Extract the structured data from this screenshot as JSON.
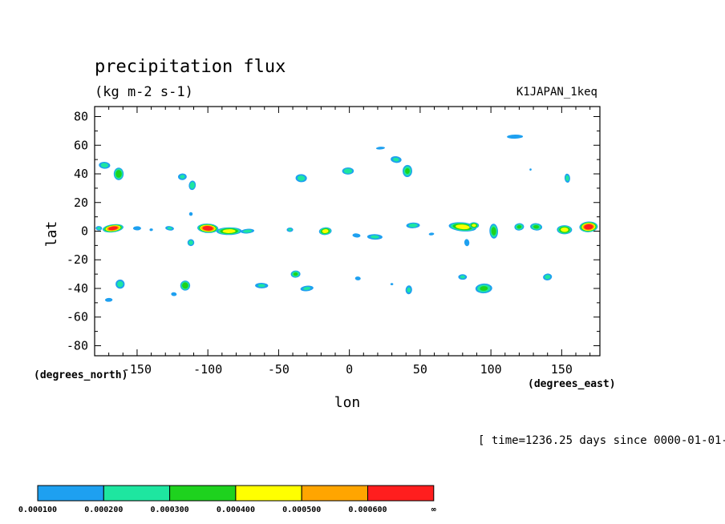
{
  "chart_data": {
    "type": "heatmap",
    "title": "precipitation flux",
    "units": "(kg m-2 s-1)",
    "dataset": "K1JAPAN_1keq",
    "xlabel": "lon",
    "ylabel": "lat",
    "x_units": "(degrees_east)",
    "y_units": "(degrees_north)",
    "time_label": "[ time=1236.25 days since 0000-01-01-",
    "xlim": [
      -180,
      177
    ],
    "ylim": [
      -87,
      87
    ],
    "x_ticks": [
      -150,
      -100,
      -50,
      0,
      50,
      100,
      150
    ],
    "y_ticks": [
      80,
      60,
      40,
      20,
      0,
      -20,
      -40,
      -60,
      -80
    ],
    "x_tick_labels": [
      "-150",
      "-100",
      "-50",
      "0",
      "50",
      "100",
      "150"
    ],
    "y_tick_labels": [
      "80",
      "60",
      "40",
      "20",
      "0",
      "-20",
      "-40",
      "-60",
      "-80"
    ],
    "levels": [
      0.0001,
      0.0002,
      0.0003,
      0.0004,
      0.0005,
      0.0006
    ],
    "colorbar": {
      "labels": [
        "0.000100",
        "0.000200",
        "0.000300",
        "0.000400",
        "0.000500",
        "0.000600",
        "∞"
      ],
      "colors": [
        "#1ea0f0",
        "#1ee6a0",
        "#1ed21e",
        "#ffff00",
        "#ffa500",
        "#ff1e1e"
      ]
    },
    "blobs": [
      {
        "lon": -167,
        "lat": 2,
        "rx": 8,
        "ry": 3,
        "peak": 0.00065
      },
      {
        "lon": -177,
        "lat": 2,
        "rx": 3,
        "ry": 2,
        "peak": 0.00022
      },
      {
        "lon": -150,
        "lat": 2,
        "rx": 4,
        "ry": 2,
        "peak": 0.00018
      },
      {
        "lon": -140,
        "lat": 1,
        "rx": 2,
        "ry": 1.5,
        "peak": 0.00014
      },
      {
        "lon": -127,
        "lat": 2,
        "rx": 4,
        "ry": 2,
        "peak": 0.00022
      },
      {
        "lon": -100,
        "lat": 2,
        "rx": 8,
        "ry": 3.5,
        "peak": 0.00068
      },
      {
        "lon": -85,
        "lat": 0,
        "rx": 10,
        "ry": 3,
        "peak": 0.00045
      },
      {
        "lon": -72,
        "lat": 0,
        "rx": 6,
        "ry": 2,
        "peak": 0.00025
      },
      {
        "lon": -112,
        "lat": -8,
        "rx": 3,
        "ry": 3,
        "peak": 0.00025
      },
      {
        "lon": -112,
        "lat": 12,
        "rx": 2,
        "ry": 2,
        "peak": 0.00015
      },
      {
        "lon": -42,
        "lat": 1,
        "rx": 3,
        "ry": 2,
        "peak": 0.00022
      },
      {
        "lon": -17,
        "lat": 0,
        "rx": 5,
        "ry": 3,
        "peak": 0.00045
      },
      {
        "lon": 5,
        "lat": -3,
        "rx": 4,
        "ry": 2,
        "peak": 0.00018
      },
      {
        "lon": 18,
        "lat": -4,
        "rx": 7,
        "ry": 2.5,
        "peak": 0.00022
      },
      {
        "lon": 45,
        "lat": 4,
        "rx": 6,
        "ry": 2.5,
        "peak": 0.00025
      },
      {
        "lon": 58,
        "lat": -2,
        "rx": 3,
        "ry": 1.5,
        "peak": 0.00015
      },
      {
        "lon": 80,
        "lat": 3,
        "rx": 11,
        "ry": 3.5,
        "peak": 0.00045
      },
      {
        "lon": 88,
        "lat": 4,
        "rx": 4,
        "ry": 2.5,
        "peak": 0.00042
      },
      {
        "lon": 102,
        "lat": 0,
        "rx": 3.5,
        "ry": 6,
        "peak": 0.00035
      },
      {
        "lon": 120,
        "lat": 3,
        "rx": 4,
        "ry": 3,
        "peak": 0.00032
      },
      {
        "lon": 132,
        "lat": 3,
        "rx": 5,
        "ry": 3,
        "peak": 0.00032
      },
      {
        "lon": 152,
        "lat": 1,
        "rx": 6,
        "ry": 3.5,
        "peak": 0.00045
      },
      {
        "lon": 169,
        "lat": 3,
        "rx": 7,
        "ry": 4,
        "peak": 0.00068
      },
      {
        "lon": 83,
        "lat": -8,
        "rx": 2.5,
        "ry": 3.5,
        "peak": 0.00018
      },
      {
        "lon": -173,
        "lat": 46,
        "rx": 5,
        "ry": 3,
        "peak": 0.00025
      },
      {
        "lon": -163,
        "lat": 40,
        "rx": 4,
        "ry": 5,
        "peak": 0.00038
      },
      {
        "lon": -118,
        "lat": 38,
        "rx": 4,
        "ry": 3,
        "peak": 0.00022
      },
      {
        "lon": -111,
        "lat": 32,
        "rx": 3,
        "ry": 4,
        "peak": 0.00028
      },
      {
        "lon": -34,
        "lat": 37,
        "rx": 5,
        "ry": 3.5,
        "peak": 0.00025
      },
      {
        "lon": -1,
        "lat": 42,
        "rx": 5,
        "ry": 3,
        "peak": 0.00028
      },
      {
        "lon": 22,
        "lat": 58,
        "rx": 5,
        "ry": 1.5,
        "peak": 0.00015
      },
      {
        "lon": 33,
        "lat": 50,
        "rx": 5,
        "ry": 3,
        "peak": 0.00022
      },
      {
        "lon": 41,
        "lat": 42,
        "rx": 4,
        "ry": 5,
        "peak": 0.00032
      },
      {
        "lon": 117,
        "lat": 66,
        "rx": 8,
        "ry": 2,
        "peak": 0.00018
      },
      {
        "lon": 154,
        "lat": 37,
        "rx": 2.5,
        "ry": 4,
        "peak": 0.00024
      },
      {
        "lon": 128,
        "lat": 43,
        "rx": 1.5,
        "ry": 1.5,
        "peak": 0.00012
      },
      {
        "lon": -162,
        "lat": -37,
        "rx": 4,
        "ry": 4,
        "peak": 0.00025
      },
      {
        "lon": -170,
        "lat": -48,
        "rx": 4,
        "ry": 2,
        "peak": 0.00016
      },
      {
        "lon": -116,
        "lat": -38,
        "rx": 4,
        "ry": 4,
        "peak": 0.00038
      },
      {
        "lon": -124,
        "lat": -44,
        "rx": 3,
        "ry": 2,
        "peak": 0.00016
      },
      {
        "lon": -62,
        "lat": -38,
        "rx": 6,
        "ry": 2.5,
        "peak": 0.00022
      },
      {
        "lon": -38,
        "lat": -30,
        "rx": 4,
        "ry": 3,
        "peak": 0.00032
      },
      {
        "lon": -30,
        "lat": -40,
        "rx": 6,
        "ry": 2.5,
        "peak": 0.00022
      },
      {
        "lon": 42,
        "lat": -41,
        "rx": 3,
        "ry": 4,
        "peak": 0.00022
      },
      {
        "lon": 80,
        "lat": -32,
        "rx": 4,
        "ry": 2.5,
        "peak": 0.00022
      },
      {
        "lon": 95,
        "lat": -40,
        "rx": 7,
        "ry": 4,
        "peak": 0.00032
      },
      {
        "lon": 140,
        "lat": -32,
        "rx": 4,
        "ry": 3,
        "peak": 0.00024
      },
      {
        "lon": 6,
        "lat": -33,
        "rx": 3,
        "ry": 2,
        "peak": 0.00016
      },
      {
        "lon": 30,
        "lat": -37,
        "rx": 2,
        "ry": 1.5,
        "peak": 0.00012
      }
    ]
  }
}
